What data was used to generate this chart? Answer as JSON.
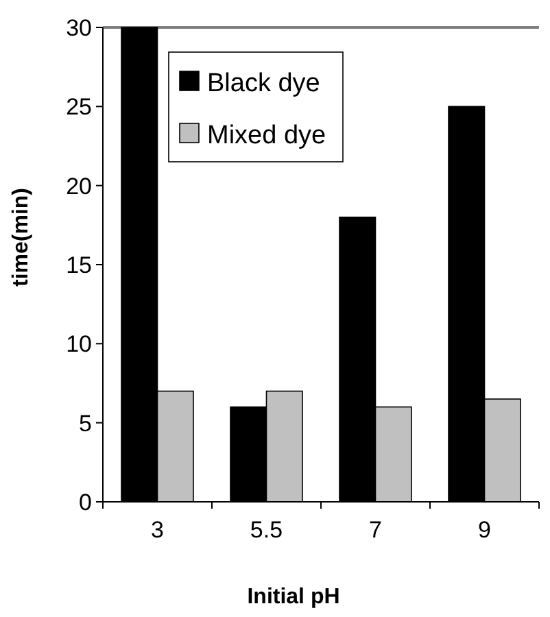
{
  "chart_data": {
    "type": "bar",
    "xlabel": "Initial pH",
    "ylabel": "time(min)",
    "categories": [
      "3",
      "5.5",
      "7",
      "9"
    ],
    "series": [
      {
        "name": "Black dye",
        "color": "#000000",
        "values": [
          30,
          6,
          18,
          25
        ]
      },
      {
        "name": "Mixed dye",
        "color": "#c0c0c0",
        "values": [
          7,
          7,
          6,
          6.5
        ]
      }
    ],
    "ylim": [
      0,
      30
    ],
    "yticks": [
      0,
      5,
      10,
      15,
      20,
      25,
      30
    ],
    "grid": false,
    "legend": "top left"
  }
}
